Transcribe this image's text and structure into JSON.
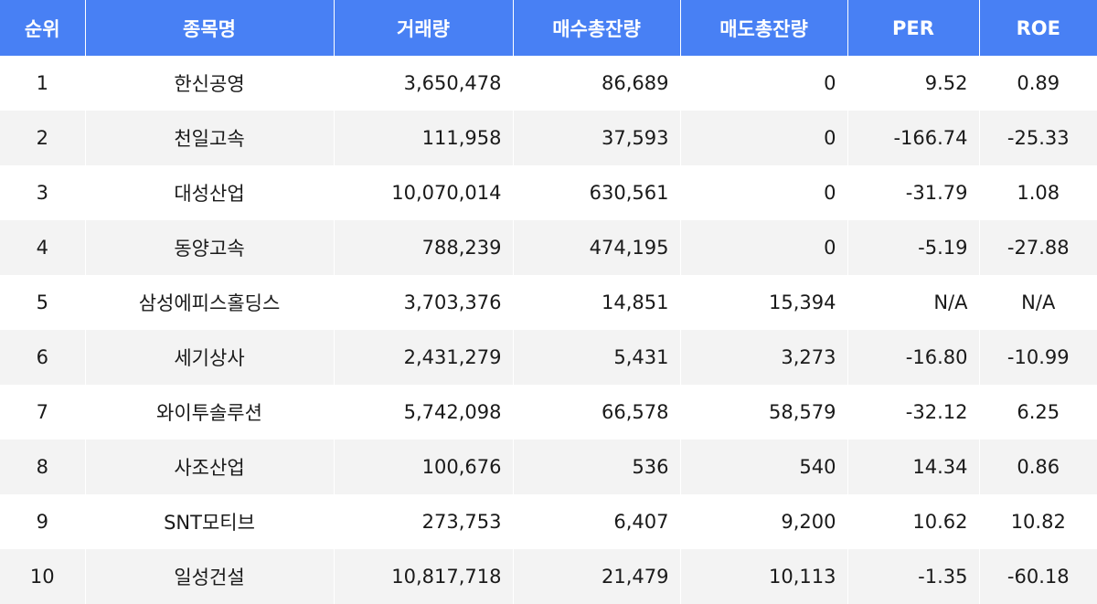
{
  "columns": [
    "순위",
    "종목명",
    "거래량",
    "매수총잔량",
    "매도총잔량",
    "PER",
    "ROE"
  ],
  "rows": [
    {
      "rank": "1",
      "name": "한신공영",
      "volume": "3,650,478",
      "bid_total": "86,689",
      "ask_total": "0",
      "per": "9.52",
      "roe": "0.89"
    },
    {
      "rank": "2",
      "name": "천일고속",
      "volume": "111,958",
      "bid_total": "37,593",
      "ask_total": "0",
      "per": "-166.74",
      "roe": "-25.33"
    },
    {
      "rank": "3",
      "name": "대성산업",
      "volume": "10,070,014",
      "bid_total": "630,561",
      "ask_total": "0",
      "per": "-31.79",
      "roe": "1.08"
    },
    {
      "rank": "4",
      "name": "동양고속",
      "volume": "788,239",
      "bid_total": "474,195",
      "ask_total": "0",
      "per": "-5.19",
      "roe": "-27.88"
    },
    {
      "rank": "5",
      "name": "삼성에피스홀딩스",
      "volume": "3,703,376",
      "bid_total": "14,851",
      "ask_total": "15,394",
      "per": "N/A",
      "roe": "N/A"
    },
    {
      "rank": "6",
      "name": "세기상사",
      "volume": "2,431,279",
      "bid_total": "5,431",
      "ask_total": "3,273",
      "per": "-16.80",
      "roe": "-10.99"
    },
    {
      "rank": "7",
      "name": "와이투솔루션",
      "volume": "5,742,098",
      "bid_total": "66,578",
      "ask_total": "58,579",
      "per": "-32.12",
      "roe": "6.25"
    },
    {
      "rank": "8",
      "name": "사조산업",
      "volume": "100,676",
      "bid_total": "536",
      "ask_total": "540",
      "per": "14.34",
      "roe": "0.86"
    },
    {
      "rank": "9",
      "name": "SNT모티브",
      "volume": "273,753",
      "bid_total": "6,407",
      "ask_total": "9,200",
      "per": "10.62",
      "roe": "10.82"
    },
    {
      "rank": "10",
      "name": "일성건설",
      "volume": "10,817,718",
      "bid_total": "21,479",
      "ask_total": "10,113",
      "per": "-1.35",
      "roe": "-60.18"
    }
  ],
  "colors": {
    "header_bg": "#4880f4",
    "header_text": "#ffffff",
    "row_alt_bg": "#f3f3f3",
    "row_bg": "#ffffff"
  }
}
